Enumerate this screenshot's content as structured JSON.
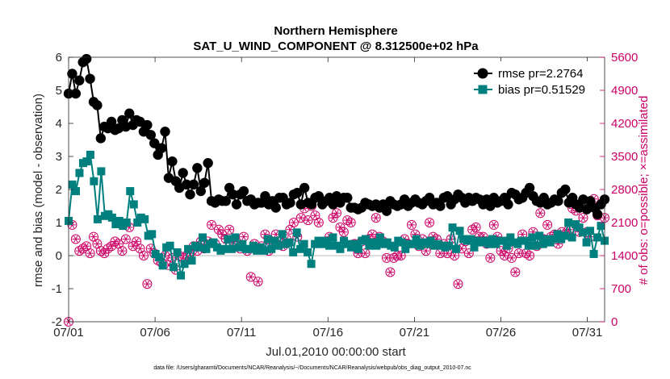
{
  "chart_data": {
    "type": "line",
    "title": "Northern Hemisphere",
    "subtitle": "SAT_U_WIND_COMPONENT @ 8.312500e+02 hPa",
    "xlabel": "Jul.01,2010 00:00:00 start",
    "ylabel": "rmse and bias (model - observation)",
    "ylabel_right": "# of obs: o=possible; ×=assimilated",
    "footer": "data file: /Users/gharamti/Documents/NCAR/Reanalysis/~/Documents/NCAR/Reanalysis/webpub/obs_diag_output_2010-07.nc",
    "xlim": [
      1,
      32
    ],
    "ylim": [
      -2,
      6
    ],
    "ylim_right": [
      0,
      5600
    ],
    "x_ticks": [
      1,
      6,
      11,
      16,
      21,
      26,
      31
    ],
    "x_tick_labels": [
      "07/01",
      "07/06",
      "07/11",
      "07/16",
      "07/21",
      "07/26",
      "07/31"
    ],
    "y_ticks": [
      -2,
      -1,
      0,
      1,
      2,
      3,
      4,
      5,
      6
    ],
    "y_tick_labels": [
      "-2",
      "-1",
      "0",
      "1",
      "2",
      "3",
      "4",
      "5",
      "6"
    ],
    "y_ticks_right": [
      0,
      700,
      1400,
      2100,
      2800,
      3500,
      4200,
      4900,
      5600
    ],
    "y_tick_labels_right": [
      "0",
      "700",
      "1400",
      "2100",
      "2800",
      "3500",
      "4200",
      "4900",
      "5600"
    ],
    "legend_position": "top-right",
    "colors": {
      "rmse": "#000000",
      "bias": "#007f7f",
      "obs": "#cc0066",
      "zero_line": "#bbbbbb"
    },
    "series": [
      {
        "name": "rmse pr=2.2764",
        "axis": "left",
        "values": [
          4.9,
          5.5,
          4.9,
          5.3,
          5.85,
          5.95,
          5.35,
          4.65,
          4.55,
          3.55,
          3.9,
          3.85,
          4.05,
          3.8,
          3.85,
          4.1,
          3.9,
          4.3,
          3.95,
          4.1,
          4.05,
          3.75,
          3.95,
          3.65,
          3.4,
          3.05,
          3.25,
          3.75,
          2.35,
          2.85,
          2.25,
          2.05,
          2.5,
          2.15,
          1.85,
          2.15,
          2.65,
          1.95,
          2.2,
          2.8,
          1.65,
          1.6,
          1.7,
          1.65,
          1.65,
          2.05,
          1.85,
          1.55,
          1.85,
          1.95,
          1.65,
          1.7,
          1.55,
          1.6,
          1.6,
          1.8,
          1.55,
          1.65,
          1.45,
          1.75,
          1.75,
          1.55,
          1.6,
          1.85,
          1.9,
          1.55,
          2.05,
          1.6,
          1.55,
          1.75,
          1.8,
          1.55,
          1.65,
          1.75,
          1.55,
          1.8,
          1.6,
          1.75,
          1.75,
          1.45,
          1.45,
          1.4,
          1.45,
          1.6,
          1.55,
          1.5,
          1.55,
          1.45,
          1.55,
          1.35,
          1.65,
          1.55,
          1.5,
          1.55,
          1.7,
          1.5,
          1.6,
          1.7,
          1.6,
          1.55,
          1.65,
          1.75,
          1.55,
          1.6,
          1.5,
          1.75,
          1.8,
          1.55,
          1.7,
          1.85,
          1.75,
          1.6,
          1.75,
          1.65,
          1.75,
          1.7,
          1.55,
          1.7,
          1.5,
          1.75,
          1.6,
          1.65,
          1.75,
          1.55,
          1.9,
          1.85,
          1.7,
          1.75,
          1.9,
          2.05,
          1.8,
          1.65,
          1.6,
          1.75,
          1.55,
          1.6,
          1.7,
          1.65,
          1.9,
          2.0,
          1.6,
          1.75,
          1.55,
          1.45,
          1.7,
          1.4,
          1.65,
          1.45,
          1.25,
          1.55,
          1.7
        ]
      },
      {
        "name": "bias pr=0.51529",
        "axis": "left",
        "values": [
          1.05,
          2.15,
          1.95,
          2.5,
          2.8,
          2.85,
          3.05,
          2.25,
          1.1,
          2.55,
          1.2,
          1.25,
          1.15,
          0.95,
          1.05,
          0.9,
          1.0,
          1.95,
          1.55,
          1.0,
          1.15,
          1.1,
          0.6,
          0.65,
          0.05,
          -0.05,
          -0.3,
          0.25,
          0.3,
          -0.35,
          0.1,
          -0.6,
          -0.25,
          0.2,
          -0.15,
          0.3,
          0.25,
          0.55,
          0.2,
          0.35,
          0.4,
          0.25,
          0.15,
          0.2,
          0.5,
          0.2,
          0.55,
          0.25,
          0.35,
          0.2,
          0.2,
          0.3,
          0.15,
          0.25,
          0.15,
          0.5,
          0.2,
          0.45,
          0.3,
          0.65,
          0.35,
          0.4,
          0.1,
          0.7,
          0.2,
          0.35,
          0.1,
          -0.25,
          0.35,
          0.45,
          0.35,
          0.45,
          0.3,
          0.55,
          0.3,
          0.2,
          0.45,
          0.35,
          0.25,
          0.35,
          0.2,
          0.45,
          0.5,
          0.3,
          0.4,
          0.3,
          0.55,
          0.35,
          0.4,
          0.3,
          0.25,
          0.45,
          0.4,
          0.2,
          0.35,
          0.35,
          0.5,
          0.3,
          0.4,
          0.35,
          0.45,
          0.3,
          0.35,
          0.3,
          0.25,
          0.3,
          0.85,
          0.2,
          0.75,
          0.5,
          0.45,
          0.5,
          0.25,
          0.45,
          0.4,
          0.45,
          0.35,
          0.5,
          0.35,
          0.45,
          0.45,
          0.3,
          0.55,
          0.4,
          0.35,
          0.45,
          0.45,
          0.3,
          0.55,
          0.3,
          0.6,
          0.35,
          0.5,
          0.4,
          0.5,
          0.65,
          0.5,
          0.6,
          1.0,
          0.55,
          0.95,
          0.85,
          0.7,
          0.4,
          0.75,
          0.05,
          0.55,
          0.9,
          0.45
        ]
      },
      {
        "name": "obs possible",
        "axis": "right",
        "values": [
          0,
          2050,
          1750,
          1500,
          1550,
          1600,
          1450,
          1800,
          1650,
          1500,
          1450,
          1550,
          1600,
          1700,
          1650,
          1500,
          1750,
          2000,
          1600,
          1700,
          1550,
          1400,
          800,
          1550,
          1450,
          1300,
          1250,
          1400,
          1200,
          1350,
          1100,
          1400,
          1350,
          1400,
          1450,
          1600,
          1500,
          1700,
          1550,
          1700,
          2050,
          1650,
          1950,
          1850,
          1750,
          1950,
          1700,
          1600,
          1550,
          1800,
          1500,
          950,
          1650,
          850,
          1600,
          1850,
          1500,
          1650,
          1850,
          1700,
          1600,
          1750,
          1950,
          2100,
          1800,
          2200,
          2400,
          2150,
          2450,
          2250,
          2100,
          2550,
          2550,
          1800,
          2200,
          2300,
          2000,
          1900,
          2150,
          2100,
          1650,
          1450,
          1700,
          1450,
          1750,
          1850,
          2200,
          1800,
          1700,
          1350,
          1050,
          1350,
          1400,
          1400,
          1750,
          1650,
          2050,
          1850,
          1600,
          1750,
          1500,
          2100,
          1800,
          1750,
          1450,
          1650,
          1450,
          1750,
          1400,
          800,
          1550,
          1700,
          1450,
          1950,
          2000,
          1800,
          1800,
          1650,
          1350,
          2050,
          1800,
          1500,
          1400,
          1550,
          1350,
          1050,
          1450,
          1850,
          1450,
          1400,
          1900,
          1600,
          2300,
          1750,
          2050,
          1800,
          1850,
          1650,
          1900,
          1850,
          1950,
          2400,
          2350,
          1900,
          2200,
          1900,
          1800,
          2600,
          2250,
          2500,
          2200
        ]
      }
    ]
  }
}
